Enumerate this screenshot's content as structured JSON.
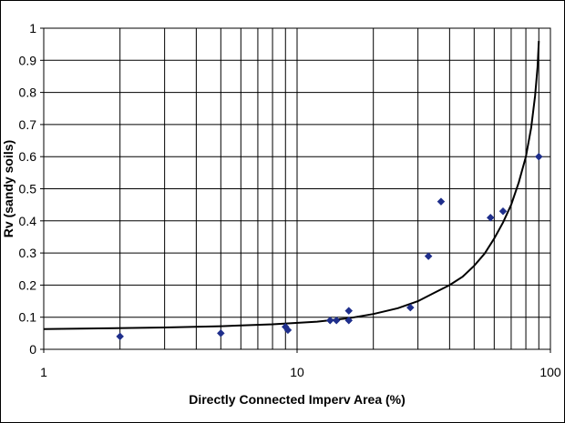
{
  "chart_data": {
    "type": "scatter",
    "title": "",
    "xlabel": "Directly Connected Imperv Area (%)",
    "ylabel": "Rv (sandy soils)",
    "x_scale": "log",
    "xlim": [
      1,
      100
    ],
    "ylim": [
      0,
      1
    ],
    "x_tick_labels": [
      "1",
      "10",
      "100"
    ],
    "y_tick_labels": [
      "0",
      "0.1",
      "0.2",
      "0.3",
      "0.4",
      "0.5",
      "0.6",
      "0.7",
      "0.8",
      "0.9",
      "1"
    ],
    "grid": true,
    "legend": "none",
    "series": [
      {
        "type": "scatter",
        "color": "#1F2F8C",
        "marker": "diamond",
        "points": [
          {
            "x": 2,
            "y": 0.04
          },
          {
            "x": 5,
            "y": 0.05
          },
          {
            "x": 9,
            "y": 0.07
          },
          {
            "x": 9.2,
            "y": 0.06
          },
          {
            "x": 13.5,
            "y": 0.09
          },
          {
            "x": 14.3,
            "y": 0.09
          },
          {
            "x": 16,
            "y": 0.09
          },
          {
            "x": 16,
            "y": 0.12
          },
          {
            "x": 28,
            "y": 0.13
          },
          {
            "x": 33,
            "y": 0.29
          },
          {
            "x": 37,
            "y": 0.46
          },
          {
            "x": 58,
            "y": 0.41
          },
          {
            "x": 65,
            "y": 0.43
          },
          {
            "x": 90,
            "y": 0.6
          }
        ]
      },
      {
        "type": "line",
        "color": "#000000",
        "points": [
          {
            "x": 1,
            "y": 0.063
          },
          {
            "x": 3,
            "y": 0.068
          },
          {
            "x": 5,
            "y": 0.072
          },
          {
            "x": 8,
            "y": 0.078
          },
          {
            "x": 12,
            "y": 0.086
          },
          {
            "x": 16,
            "y": 0.097
          },
          {
            "x": 20,
            "y": 0.11
          },
          {
            "x": 25,
            "y": 0.128
          },
          {
            "x": 30,
            "y": 0.15
          },
          {
            "x": 35,
            "y": 0.177
          },
          {
            "x": 40,
            "y": 0.2
          },
          {
            "x": 45,
            "y": 0.226
          },
          {
            "x": 50,
            "y": 0.26
          },
          {
            "x": 55,
            "y": 0.298
          },
          {
            "x": 60,
            "y": 0.345
          },
          {
            "x": 65,
            "y": 0.395
          },
          {
            "x": 70,
            "y": 0.45
          },
          {
            "x": 75,
            "y": 0.52
          },
          {
            "x": 80,
            "y": 0.6
          },
          {
            "x": 84,
            "y": 0.69
          },
          {
            "x": 87,
            "y": 0.79
          },
          {
            "x": 89,
            "y": 0.88
          },
          {
            "x": 90,
            "y": 0.96
          }
        ]
      }
    ]
  }
}
